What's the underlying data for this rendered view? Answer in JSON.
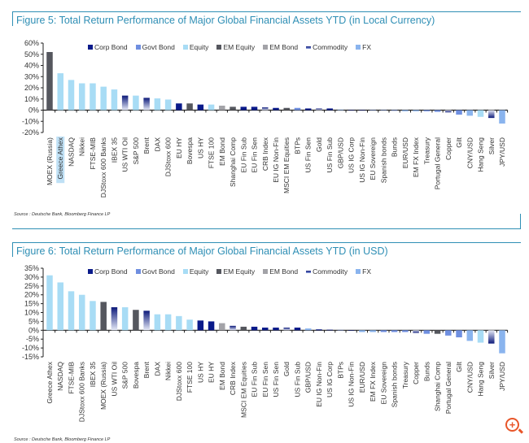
{
  "legend": [
    {
      "name": "Corp Bond",
      "color": "#0a1a8a"
    },
    {
      "name": "Govt Bond",
      "color": "#6f8fe0"
    },
    {
      "name": "Equity",
      "color": "#a8dcf5"
    },
    {
      "name": "EM Equity",
      "color": "#55575e"
    },
    {
      "name": "EM Bond",
      "color": "#a3a3a8"
    },
    {
      "name": "Commodity",
      "color": "#0d1a7a"
    },
    {
      "name": "FX",
      "color": "#8ab4ee"
    }
  ],
  "chart_data": [
    {
      "type": "bar",
      "title": "Figure 5: Total Return Performance of Major Global Financial Assets YTD (in Local Currency)",
      "source": "Source : Deutsche Bank, Bloomberg Finance LP",
      "ylim": [
        -20,
        60
      ],
      "yticks": [
        60,
        50,
        40,
        30,
        20,
        10,
        0,
        -10,
        -20
      ],
      "ytick_suffix": "%",
      "highlighted": "Greece Athex",
      "categories": [
        "MOEX (Russia)",
        "Greece Athex",
        "NASDAQ",
        "Nikkei",
        "FTSE-MIB",
        "DJStoxx 600 Banks",
        "IBEX 35",
        "US WTI Oil",
        "S&P 500",
        "Brent",
        "DAX",
        "DJStoxx 600",
        "EU HY",
        "Bovespa",
        "US HY",
        "FTSE 100",
        "EM Bond",
        "Shanghai Comp",
        "EU Fin Sub",
        "EU Fin Sen",
        "CRB Index",
        "EU IG Non-Fin",
        "MSCI EM Equities",
        "BTPs",
        "US Fin Sen",
        "Gold",
        "US Fin Sub",
        "GBP/USD",
        "US IG Corp",
        "US IG Non-Fin",
        "EU Sovereign",
        "Spanish bonds",
        "Bunds",
        "EUR/USD",
        "EM FX Index",
        "Treasury",
        "Portugal General",
        "Copper",
        "Gilt",
        "CNY/USD",
        "Hang Seng",
        "Silver",
        "JPY/USD"
      ],
      "values": [
        52,
        33,
        27,
        24,
        24,
        21,
        18.5,
        13,
        13,
        11,
        10.5,
        9.5,
        6,
        6,
        5,
        5,
        4,
        3,
        3,
        3,
        2.5,
        2,
        2,
        2,
        1.5,
        1.5,
        1.5,
        0.5,
        0.3,
        0.2,
        0,
        0,
        -0.5,
        -1,
        -1,
        -1,
        -1.5,
        -2,
        -4,
        -5,
        -6,
        -7,
        -12
      ],
      "classes": [
        "EM Equity",
        "Equity",
        "Equity",
        "Equity",
        "Equity",
        "Equity",
        "Equity",
        "Commodity",
        "Equity",
        "Commodity",
        "Equity",
        "Equity",
        "Corp Bond",
        "EM Equity",
        "Corp Bond",
        "Equity",
        "EM Bond",
        "EM Equity",
        "Corp Bond",
        "Corp Bond",
        "Commodity",
        "Corp Bond",
        "EM Equity",
        "Govt Bond",
        "Corp Bond",
        "Commodity",
        "Corp Bond",
        "FX",
        "Corp Bond",
        "Corp Bond",
        "Govt Bond",
        "Govt Bond",
        "Govt Bond",
        "FX",
        "FX",
        "Govt Bond",
        "Govt Bond",
        "Commodity",
        "Govt Bond",
        "FX",
        "Equity",
        "Commodity",
        "FX"
      ]
    },
    {
      "type": "bar",
      "title": "Figure 6: Total Return Performance of Major Global Financial Assets YTD (in USD)",
      "source": "Source : Deutsche Bank, Bloomberg Finance LP",
      "ylim": [
        -15,
        35
      ],
      "yticks": [
        35,
        30,
        25,
        20,
        15,
        10,
        5,
        0,
        -5,
        -10,
        -15
      ],
      "ytick_suffix": "%",
      "highlighted": "",
      "categories": [
        "Greece Athex",
        "NASDAQ",
        "FTSE-MIB",
        "DJStoxx 600 Banks",
        "IBEX 35",
        "MOEX (Russia)",
        "US WTI Oil",
        "S&P 500",
        "Bovespa",
        "Brent",
        "DAX",
        "Nikkei",
        "DJStoxx 600",
        "FTSE 100",
        "US HY",
        "EU HY",
        "EM Bond",
        "CRB Index",
        "MSCI EM Equities",
        "EU Fin Sub",
        "EU Fin Sen",
        "US Fin Sen",
        "Gold",
        "US Fin Sub",
        "GBP/USD",
        "EU IG Non-Fin",
        "US IG Corp",
        "BTPs",
        "US IG Non-Fin",
        "EUR/USD",
        "EM FX Index",
        "EU Sovereign",
        "Spanish bonds",
        "Treasury",
        "Copper",
        "Bunds",
        "Shanghai Comp",
        "Portugal General",
        "Gilt",
        "CNY/USD",
        "Hang Seng",
        "Silver",
        "JPY/USD"
      ],
      "values": [
        31,
        27,
        22,
        20,
        16.5,
        16,
        13,
        13,
        11.5,
        11,
        9,
        9,
        8,
        6,
        5.5,
        5,
        4,
        2.5,
        2,
        2,
        1.5,
        1.5,
        1.5,
        1.5,
        1,
        0.5,
        0.3,
        0.2,
        0,
        -1,
        -1,
        -1,
        -1,
        -1,
        -1.5,
        -2,
        -2,
        -3,
        -4,
        -6,
        -7,
        -7.5,
        -13
      ],
      "classes": [
        "Equity",
        "Equity",
        "Equity",
        "Equity",
        "Equity",
        "EM Equity",
        "Commodity",
        "Equity",
        "EM Equity",
        "Commodity",
        "Equity",
        "Equity",
        "Equity",
        "Equity",
        "Corp Bond",
        "Corp Bond",
        "EM Bond",
        "Commodity",
        "EM Equity",
        "Corp Bond",
        "Corp Bond",
        "Corp Bond",
        "Commodity",
        "Corp Bond",
        "FX",
        "Corp Bond",
        "Corp Bond",
        "Govt Bond",
        "Corp Bond",
        "FX",
        "FX",
        "Govt Bond",
        "Govt Bond",
        "Govt Bond",
        "Commodity",
        "Govt Bond",
        "EM Equity",
        "Govt Bond",
        "Govt Bond",
        "FX",
        "Equity",
        "Commodity",
        "FX"
      ]
    }
  ]
}
